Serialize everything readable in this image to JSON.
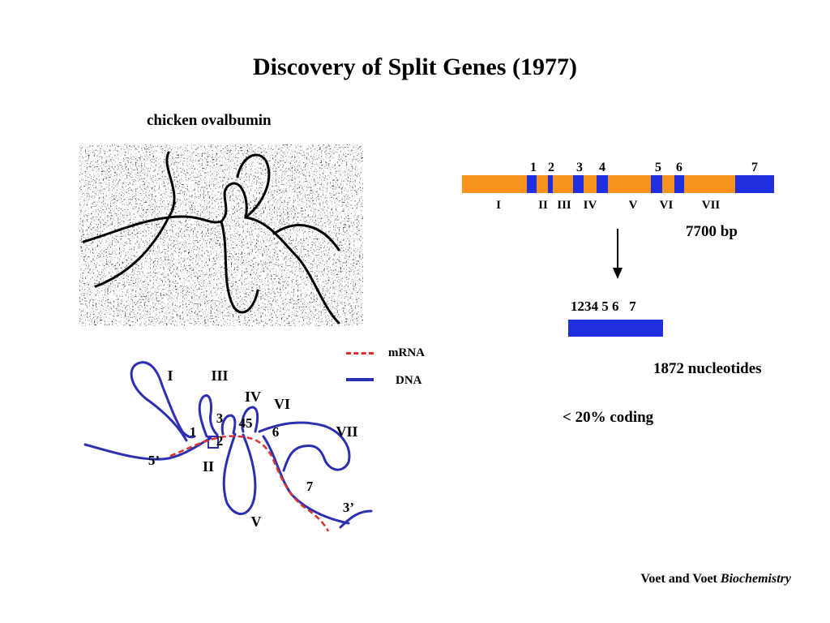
{
  "title": "Discovery of Split Genes (1977)",
  "micrograph_caption": "chicken ovalbumin",
  "gene": {
    "exon_numbers": [
      "1",
      "2",
      "3",
      "4",
      "5",
      "6",
      "7"
    ],
    "intron_labels": [
      "I",
      "II",
      "III",
      "IV",
      "V",
      "VI",
      "VII"
    ],
    "length": "7700 bp",
    "intron_color": "#f7941d",
    "exon_color": "#1f2fe0"
  },
  "mrna": {
    "exon_label": "1234 5 6   7",
    "length": "1872 nucleotides",
    "coding": "< 20% coding"
  },
  "legend": {
    "mrna_label": "mRNA",
    "dna_label": "DNA",
    "mrna_color": "#e03030",
    "dna_color": "#2b2fb0"
  },
  "schematic": {
    "loop_labels": [
      "I",
      "III",
      "IV",
      "VI",
      "VII",
      "II",
      "V"
    ],
    "exon_labels": [
      "1",
      "2",
      "3",
      "45",
      "6",
      "7"
    ],
    "end_labels": [
      "5’",
      "3’"
    ]
  },
  "credit": {
    "authors": "Voet and Voet",
    "book": "Biochemistry"
  }
}
